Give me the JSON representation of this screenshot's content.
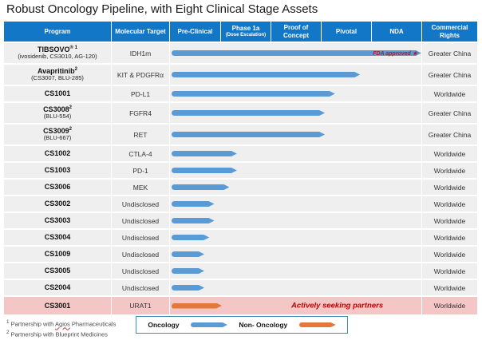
{
  "title": "Robust Oncology Pipeline, with Eight Clinical Stage Assets",
  "colors": {
    "header_bg": "#1377C8",
    "oncology": "#5B9BD5",
    "non_oncology": "#E2793B",
    "highlight_row": "#F5C6C6",
    "row_bg": "#EFEFEF",
    "fda_note": "#A51E2D",
    "partners_note": "#C00000"
  },
  "header": {
    "columns": [
      {
        "label": "Program"
      },
      {
        "label": "Molecular Target"
      },
      {
        "label": "Pre-Clinical"
      },
      {
        "label": "Phase 1a",
        "sub": "(Dose Escalation)"
      },
      {
        "label": "Proof of Concept"
      },
      {
        "label": "Pivotal"
      },
      {
        "label": "NDA"
      },
      {
        "label": "Commercial Rights"
      }
    ]
  },
  "rows": [
    {
      "name": "TIBSOVO",
      "sup": "® 1",
      "subtitle": "(ivosidenib, CS3010, AG-120)",
      "target": "IDH1m",
      "bar_pct": 100,
      "bar_type": "oncology",
      "note_full": "FDA approved ★",
      "rights": "Greater China"
    },
    {
      "name": "Avapritinib",
      "sup": "2",
      "subtitle": "(CS3007, BLU-285)",
      "target": "KIT & PDGFRα",
      "bar_pct": 75,
      "bar_type": "oncology",
      "rights": "Greater China"
    },
    {
      "name": "CS1001",
      "sup": "",
      "subtitle": "",
      "target": "PD-L1",
      "bar_pct": 65,
      "bar_type": "oncology",
      "rights": "Worldwide"
    },
    {
      "name": "CS3008",
      "sup": "2",
      "subtitle": "(BLU-554)",
      "target": "FGFR4",
      "bar_pct": 61,
      "bar_type": "oncology",
      "rights": "Greater China"
    },
    {
      "name": "CS3009",
      "sup": "2",
      "subtitle": "(BLU-667)",
      "target": "RET",
      "bar_pct": 61,
      "bar_type": "oncology",
      "rights": "Greater China"
    },
    {
      "name": "CS1002",
      "sup": "",
      "subtitle": "",
      "target": "CTLA-4",
      "bar_pct": 26,
      "bar_type": "oncology",
      "rights": "Worldwide"
    },
    {
      "name": "CS1003",
      "sup": "",
      "subtitle": "",
      "target": "PD-1",
      "bar_pct": 26,
      "bar_type": "oncology",
      "rights": "Worldwide"
    },
    {
      "name": "CS3006",
      "sup": "",
      "subtitle": "",
      "target": "MEK",
      "bar_pct": 23,
      "bar_type": "oncology",
      "rights": "Worldwide"
    },
    {
      "name": "CS3002",
      "sup": "",
      "subtitle": "",
      "target": "Undisclosed",
      "bar_pct": 17,
      "bar_type": "oncology",
      "rights": "Worldwide"
    },
    {
      "name": "CS3003",
      "sup": "",
      "subtitle": "",
      "target": "Undisclosed",
      "bar_pct": 17,
      "bar_type": "oncology",
      "rights": "Worldwide"
    },
    {
      "name": "CS3004",
      "sup": "",
      "subtitle": "",
      "target": "Undisclosed",
      "bar_pct": 15,
      "bar_type": "oncology",
      "rights": "Worldwide"
    },
    {
      "name": "CS1009",
      "sup": "",
      "subtitle": "",
      "target": "Undisclosed",
      "bar_pct": 13,
      "bar_type": "oncology",
      "rights": "Worldwide"
    },
    {
      "name": "CS3005",
      "sup": "",
      "subtitle": "",
      "target": "Undisclosed",
      "bar_pct": 13,
      "bar_type": "oncology",
      "rights": "Worldwide"
    },
    {
      "name": "CS2004",
      "sup": "",
      "subtitle": "",
      "target": "Undisclosed",
      "bar_pct": 13,
      "bar_type": "oncology",
      "rights": "Worldwide"
    },
    {
      "name": "CS3001",
      "sup": "",
      "subtitle": "",
      "target": "URAT1",
      "bar_pct": 20,
      "bar_type": "non_oncology",
      "highlight": true,
      "note2": "Actively seeking partners",
      "rights": "Worldwide"
    }
  ],
  "legend": {
    "oncology_label": "Oncology",
    "non_oncology_label": "Non- Oncology"
  },
  "footnotes": [
    {
      "sup": "1",
      "pre": "Partnership with ",
      "underlined": "Agios",
      "post": " Pharmaceuticals"
    },
    {
      "sup": "2",
      "pre": "Partnership with ",
      "underlined": "",
      "post": "Blueprint Medicines"
    }
  ],
  "chart_data": {
    "type": "bar",
    "orientation": "horizontal",
    "title": "Robust Oncology Pipeline, with Eight Clinical Stage Assets",
    "stage_axis": [
      "Pre-Clinical",
      "Phase 1a (Dose Escalation)",
      "Proof of Concept",
      "Pivotal",
      "NDA"
    ],
    "categories": [
      "TIBSOVO (ivosidenib, CS3010, AG-120)",
      "Avapritinib (CS3007, BLU-285)",
      "CS1001",
      "CS3008 (BLU-554)",
      "CS3009 (BLU-667)",
      "CS1002",
      "CS1003",
      "CS3006",
      "CS3002",
      "CS3003",
      "CS3004",
      "CS1009",
      "CS3005",
      "CS2004",
      "CS3001"
    ],
    "molecular_targets": [
      "IDH1m",
      "KIT & PDGFRα",
      "PD-L1",
      "FGFR4",
      "RET",
      "CTLA-4",
      "PD-1",
      "MEK",
      "Undisclosed",
      "Undisclosed",
      "Undisclosed",
      "Undisclosed",
      "Undisclosed",
      "Undisclosed",
      "URAT1"
    ],
    "values_pct_of_track": [
      100,
      75,
      65,
      61,
      61,
      26,
      26,
      23,
      17,
      17,
      15,
      13,
      13,
      13,
      20
    ],
    "stage_reached": [
      "NDA (FDA approved)",
      "Pivotal",
      "Pivotal",
      "Pivotal",
      "Pivotal",
      "Phase 1a",
      "Phase 1a",
      "Phase 1a",
      "Pre-Clinical",
      "Pre-Clinical",
      "Pre-Clinical",
      "Pre-Clinical",
      "Pre-Clinical",
      "Pre-Clinical",
      "Pre-Clinical"
    ],
    "commercial_rights": [
      "Greater China",
      "Greater China",
      "Worldwide",
      "Greater China",
      "Greater China",
      "Worldwide",
      "Worldwide",
      "Worldwide",
      "Worldwide",
      "Worldwide",
      "Worldwide",
      "Worldwide",
      "Worldwide",
      "Worldwide",
      "Worldwide"
    ],
    "series_legend": [
      {
        "name": "Oncology",
        "color": "#5B9BD5"
      },
      {
        "name": "Non- Oncology",
        "color": "#E2793B"
      }
    ],
    "annotations": [
      "FDA approved ★ (TIBSOVO)",
      "Actively seeking partners (CS3001)"
    ]
  }
}
